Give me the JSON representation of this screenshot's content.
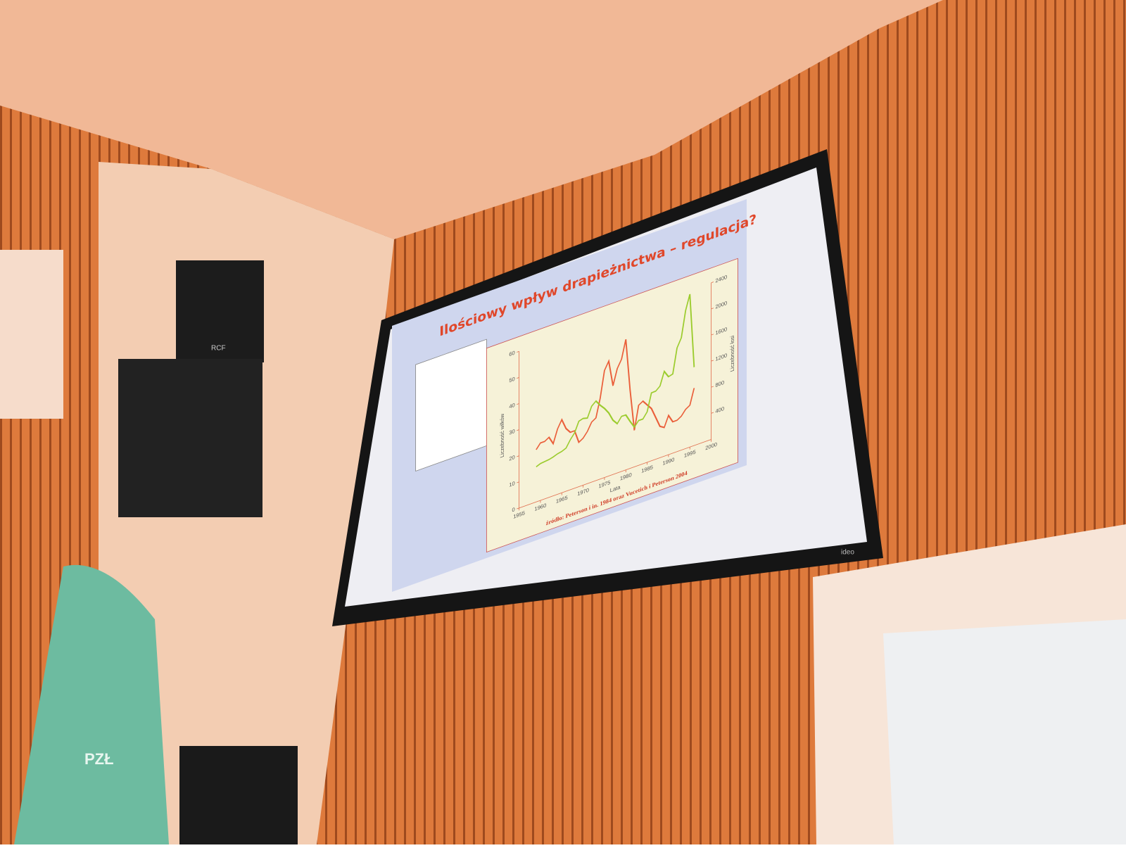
{
  "chart_data": {
    "type": "line",
    "title": "Ilościowy wpływ drapieżnictwa – regulacja?",
    "source": "źródło: Peterson i in. 1984 oraz Vucetich i Peterson 2004",
    "xlabel": "Lata",
    "ylabel": "Liczebność wilków",
    "y2label": "Liczebność łosi",
    "x": [
      1959,
      1960,
      1961,
      1962,
      1963,
      1964,
      1965,
      1966,
      1967,
      1968,
      1969,
      1970,
      1971,
      1972,
      1973,
      1974,
      1975,
      1976,
      1977,
      1978,
      1979,
      1980,
      1981,
      1982,
      1983,
      1984,
      1985,
      1986,
      1987,
      1988,
      1989,
      1990,
      1991,
      1992,
      1993,
      1994,
      1995,
      1996
    ],
    "series": [
      {
        "color": "#ea5f3a",
        "values": [
          20,
          22,
          22,
          23,
          20,
          25,
          28,
          24,
          22,
          22,
          17,
          18,
          20,
          23,
          24,
          31,
          41,
          44,
          34,
          40,
          43,
          50,
          30,
          14,
          23,
          24,
          22,
          20,
          16,
          12,
          11,
          15,
          12,
          12,
          13,
          15,
          16,
          22
        ]
      },
      {
        "color": "#9ccc2e",
        "axis": "y2",
        "values": [
          538,
          564,
          572,
          579,
          596,
          620,
          634,
          661,
          766,
          848,
          1003,
          1022,
          1004,
          1163,
          1218,
          1131,
          1059,
          966,
          831,
          755,
          844,
          842,
          720,
          609,
          687,
          686,
          773,
          1040,
          1043,
          1098,
          1298,
          1194,
          1213,
          1589,
          1720,
          2113,
          2342,
          1200
        ]
      }
    ],
    "xlim": [
      1955,
      2000
    ],
    "xticks": [
      1955,
      1960,
      1965,
      1970,
      1975,
      1980,
      1985,
      1990,
      1995,
      2000
    ],
    "ylim": [
      0,
      60
    ],
    "yticks": [
      0,
      10,
      20,
      30,
      40,
      50,
      60
    ],
    "y2lim": [
      0,
      2400
    ],
    "y2ticks": [
      400,
      800,
      1200,
      1600,
      2000,
      2400
    ]
  },
  "scene": {
    "speaker_brand": "RCF",
    "screen_brand": "ideo",
    "flag_text": "PZŁ"
  }
}
